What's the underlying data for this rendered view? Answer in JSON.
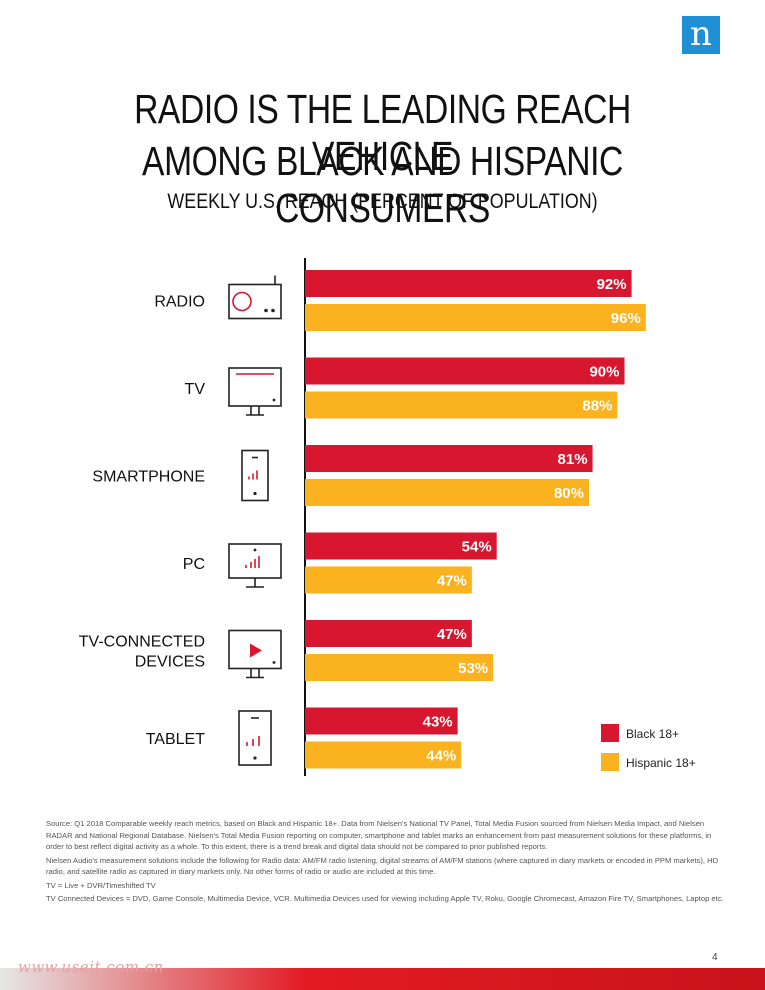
{
  "brand": {
    "logo_letter": "n",
    "logo_color": "#1f8fd6"
  },
  "header": {
    "title_line1": "RADIO IS THE LEADING REACH VEHICLE",
    "title_line2": "AMONG BLACK AND HISPANIC CONSUMERS",
    "subtitle": "WEEKLY U.S. REACH (PERCENT OF POPULATION)"
  },
  "chart_data": {
    "type": "bar",
    "orientation": "horizontal",
    "title": "WEEKLY U.S. REACH (PERCENT OF POPULATION)",
    "categories": [
      "RADIO",
      "TV",
      "SMARTPHONE",
      "PC",
      "TV-CONNECTED DEVICES",
      "TABLET"
    ],
    "category_icons": [
      "radio-icon",
      "tv-icon",
      "smartphone-icon",
      "pc-icon",
      "tv-connected-device-icon",
      "tablet-icon"
    ],
    "series": [
      {
        "name": "Black 18+",
        "color": "#d7172f",
        "values": [
          92,
          90,
          81,
          54,
          47,
          43
        ]
      },
      {
        "name": "Hispanic 18+",
        "color": "#fbb21f",
        "values": [
          96,
          88,
          80,
          47,
          53,
          44
        ]
      }
    ],
    "value_suffix": "%",
    "xlim": [
      0,
      100
    ],
    "grid": false,
    "legend_position": "bottom-right"
  },
  "legend": {
    "items": [
      {
        "label": "Black 18+",
        "color": "#d7172f"
      },
      {
        "label": "Hispanic 18+",
        "color": "#fbb21f"
      }
    ]
  },
  "notes": [
    "Source: Q1 2018 Comparable weekly reach metrics, based on Black and Hispanic 18+. Data from Nielsen's National TV Panel, Total Media Fusion sourced from Nielsen Media Impact, and Nielsen RADAR and National Regional Database. Nielsen's Total Media Fusion reporting on computer, smartphone and tablet marks an enhancement from past measurement solutions for these platforms, in order to best reflect digital activity as a whole. To this extent, there is a trend break and digital data should not be compared to prior published reports.",
    "Nielsen Audio's measurement solutions include the following for Radio data: AM/FM radio listening, digital streams of AM/FM stations (where captured in diary markets or encoded in PPM markets), HD radio, and satellite radio as captured in diary markets only. No other forms of radio or audio are included at this time.",
    "TV = Live + DVR/Timeshifted TV",
    "TV Connected Devices = DVD, Game Console, Multimedia Device, VCR. Multimedia Devices used for viewing including Apple TV, Roku, Google Chromecast, Amazon Fire TV, Smartphones, Laptop etc."
  ],
  "footer": {
    "page_number": "4",
    "watermark": "www.useit.com.cn"
  }
}
